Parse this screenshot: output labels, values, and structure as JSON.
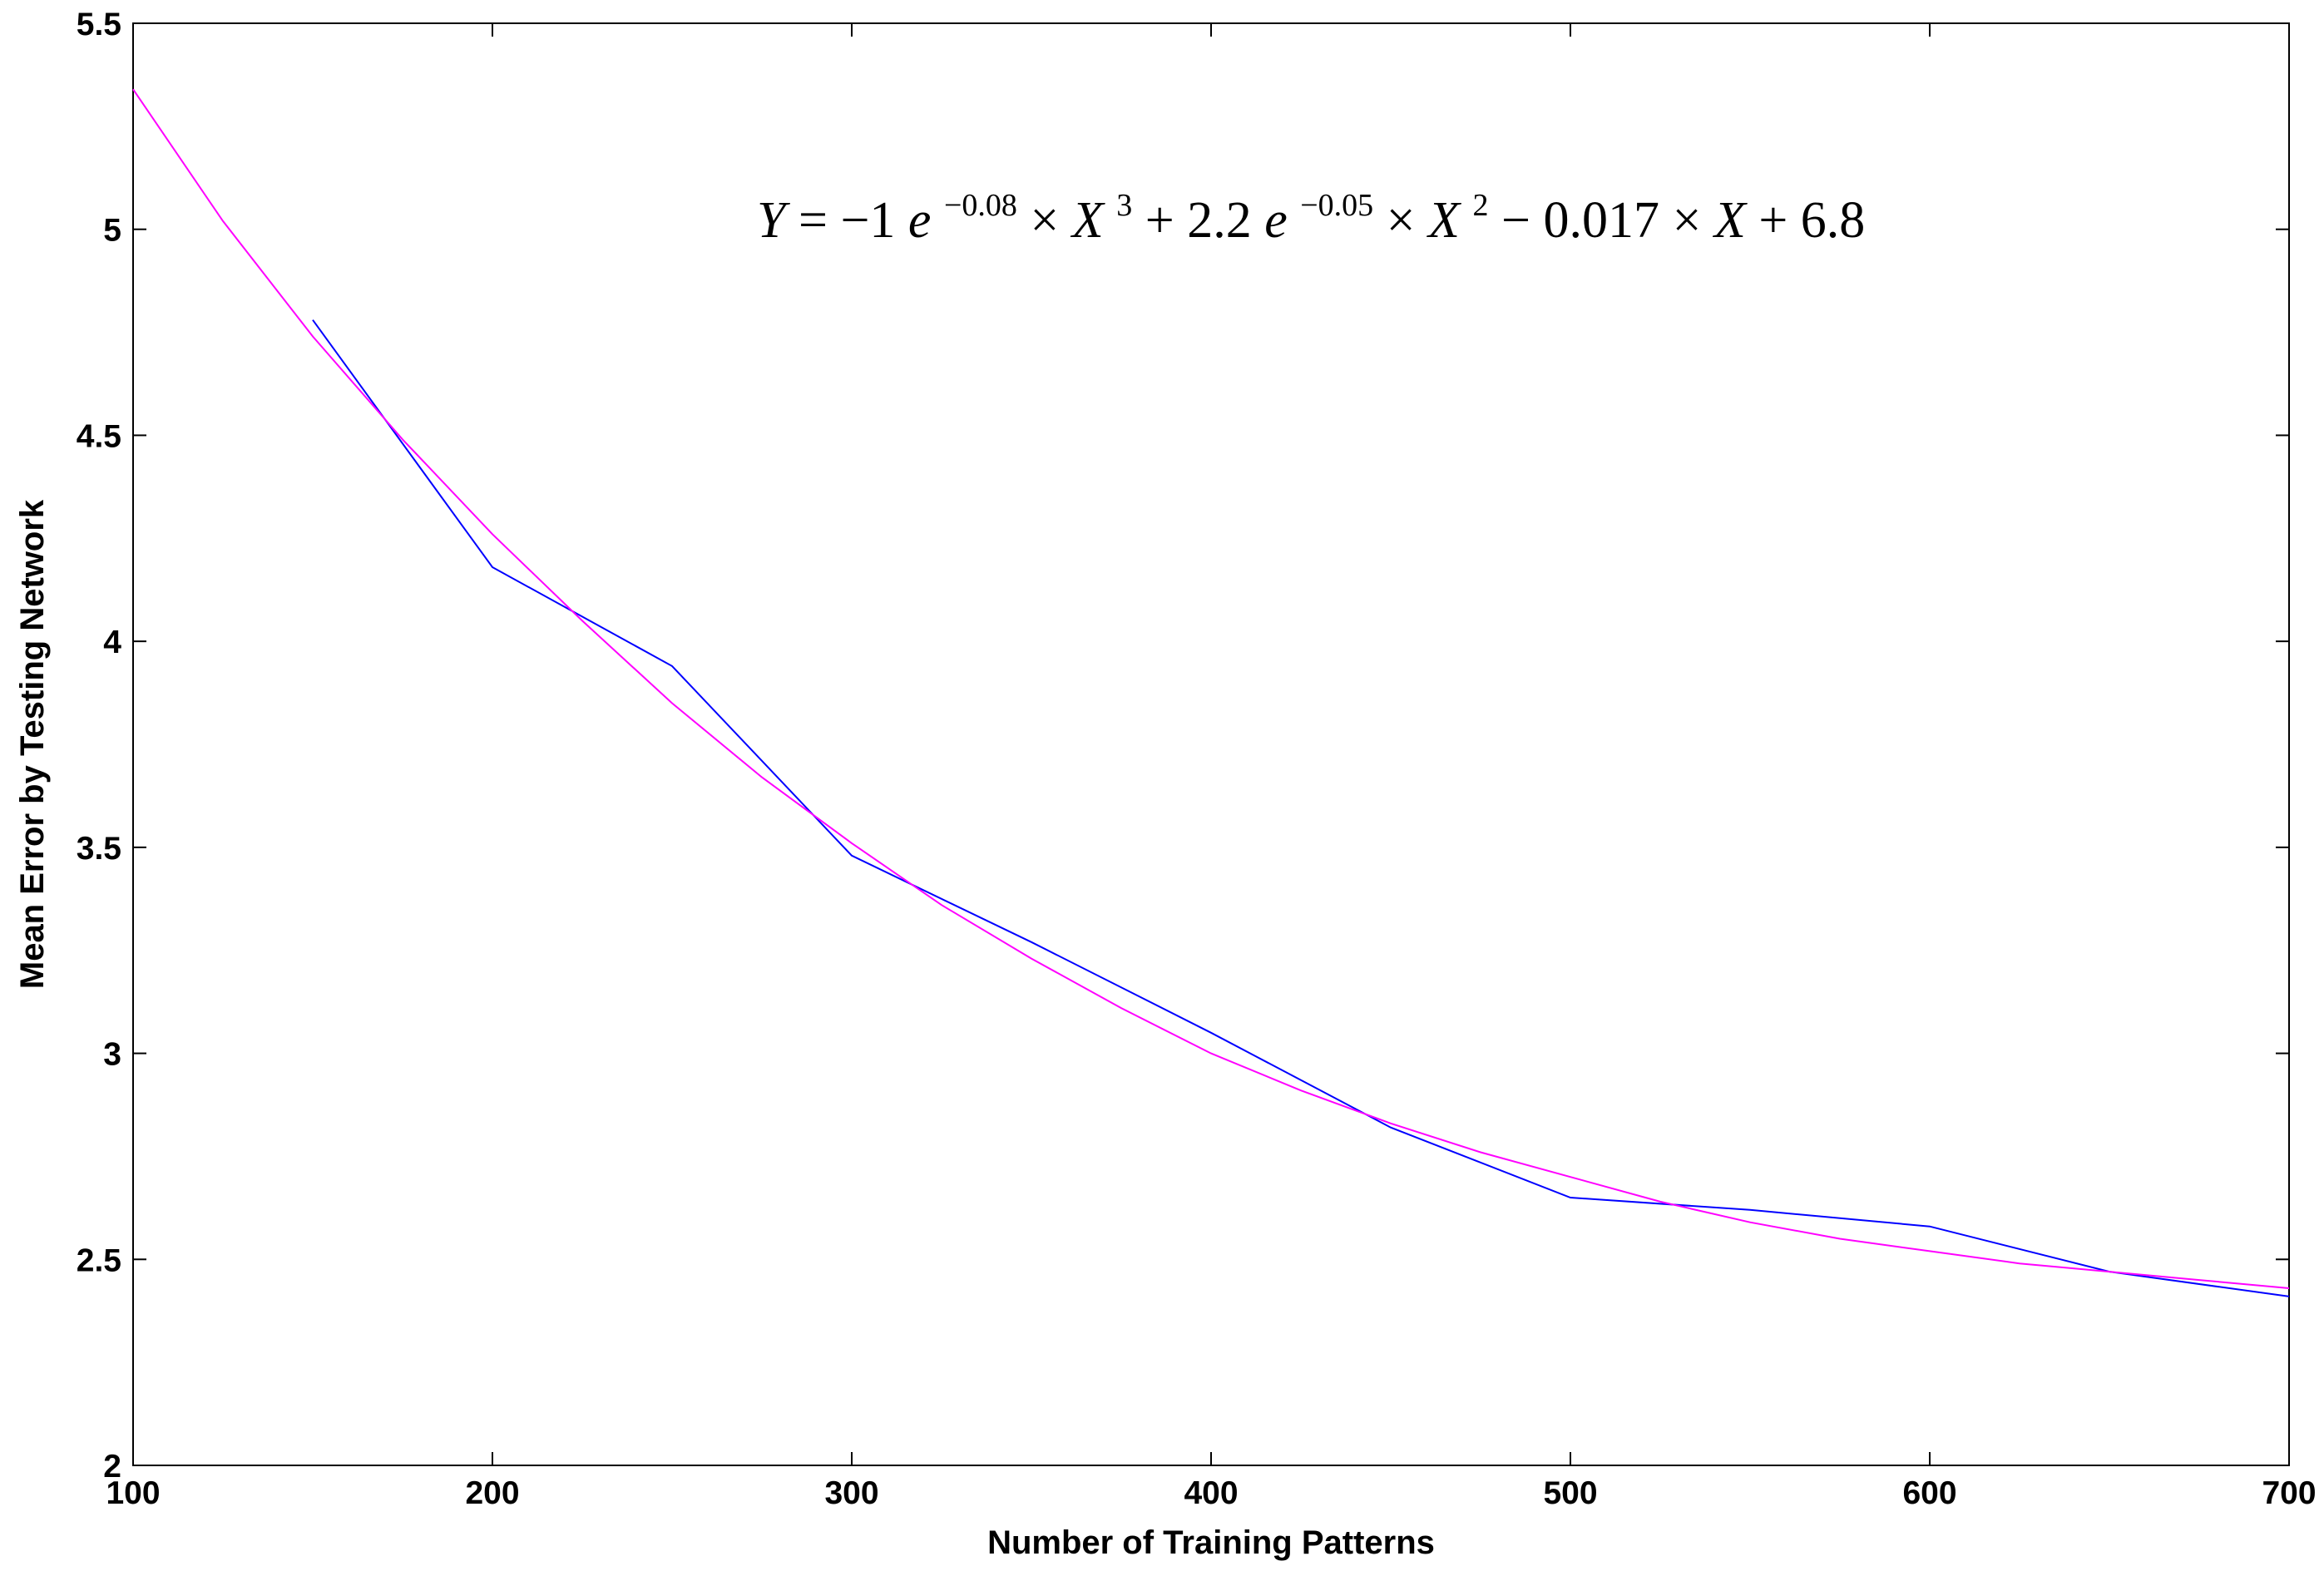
{
  "chart_data": {
    "type": "line",
    "xlabel": "Number of Training Patterns",
    "ylabel": "Mean Error by Testing Network",
    "xlim": [
      100,
      700
    ],
    "ylim": [
      2,
      5.5
    ],
    "grid": false,
    "x_ticks": [
      100,
      200,
      300,
      400,
      500,
      600,
      700
    ],
    "y_ticks": [
      2,
      2.5,
      3,
      3.5,
      4,
      4.5,
      5,
      5.5
    ],
    "x_tick_labels": [
      "100",
      "200",
      "300",
      "400",
      "500",
      "600",
      "700"
    ],
    "y_tick_labels": [
      "2",
      "2.5",
      "3",
      "3.5",
      "4",
      "4.5",
      "5",
      "5.5"
    ],
    "annotation": {
      "text": "Y = −1e−0.08 × X3 + 2.2e−0.05 × X2 − 0.017 × X + 6.8",
      "parts": {
        "y": "Y",
        "eq1": " = −1",
        "e1": "e",
        "exp1": "−0.08",
        "times1": " × ",
        "x1": "X",
        "pow1": "3",
        "plus1": " + 2.2",
        "e2": "e",
        "exp2": "−0.05",
        "times2": " × ",
        "x2": "X",
        "pow2": "2",
        "minus1": " − 0.017 × ",
        "x3": "X",
        "tail": " + 6.8"
      }
    },
    "series": [
      {
        "color": "#0000ff",
        "x": [
          150,
          200,
          250,
          300,
          350,
          400,
          450,
          500,
          550,
          600,
          650,
          700
        ],
        "y": [
          4.78,
          4.18,
          3.94,
          3.48,
          3.27,
          3.05,
          2.82,
          2.65,
          2.62,
          2.58,
          2.47,
          2.41
        ]
      },
      {
        "color": "#ff00ff",
        "x": [
          100,
          125,
          150,
          175,
          200,
          225,
          250,
          275,
          300,
          325,
          350,
          375,
          400,
          425,
          450,
          475,
          500,
          525,
          550,
          575,
          600,
          625,
          650,
          675,
          700
        ],
        "y": [
          5.34,
          5.02,
          4.74,
          4.49,
          4.26,
          4.05,
          3.85,
          3.67,
          3.51,
          3.36,
          3.23,
          3.11,
          3.0,
          2.91,
          2.83,
          2.76,
          2.7,
          2.64,
          2.59,
          2.55,
          2.52,
          2.49,
          2.47,
          2.45,
          2.43
        ]
      }
    ]
  }
}
